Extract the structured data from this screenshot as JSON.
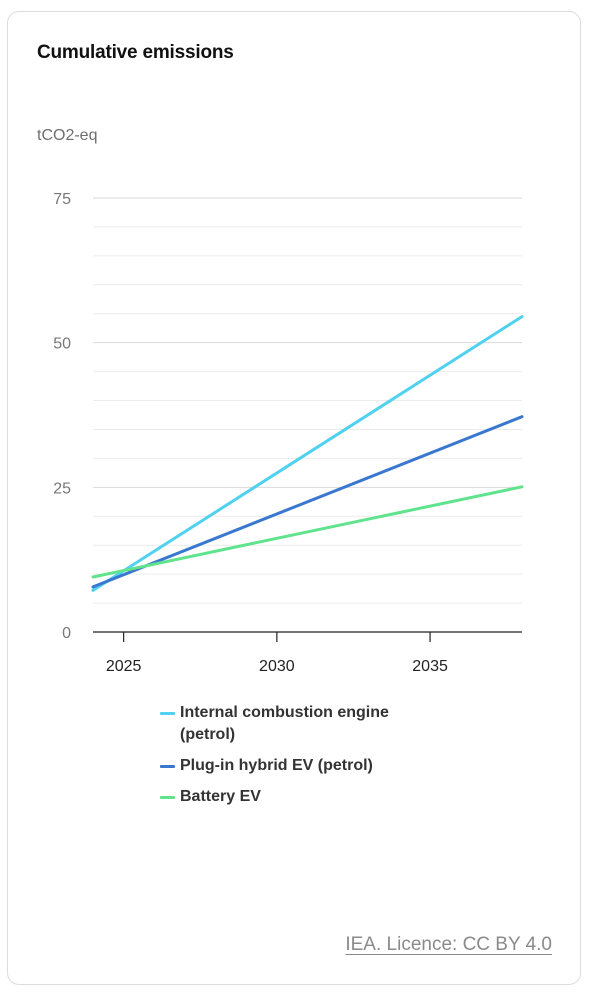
{
  "chart_data": {
    "type": "line",
    "title": "Cumulative emissions",
    "ylabel": "tCO2-eq",
    "xlim": [
      2024,
      2038
    ],
    "ylim": [
      0,
      75
    ],
    "x_ticks": [
      2025,
      2030,
      2035
    ],
    "y_ticks": [
      0,
      25,
      50,
      75
    ],
    "grid": true,
    "legend_position": "bottom",
    "series": [
      {
        "name": "Internal combustion engine (petrol)",
        "color": "#4fd1ef",
        "x": [
          2024,
          2038
        ],
        "y": [
          7.2,
          54.5
        ]
      },
      {
        "name": "Plug-in hybrid EV (petrol)",
        "color": "#3a78cf",
        "x": [
          2024,
          2038
        ],
        "y": [
          7.8,
          37.2
        ]
      },
      {
        "name": "Battery EV",
        "color": "#5fe38c",
        "x": [
          2024,
          2038
        ],
        "y": [
          9.5,
          25.1
        ]
      }
    ]
  },
  "credit": {
    "text": "IEA. Licence: CC BY 4.0"
  }
}
